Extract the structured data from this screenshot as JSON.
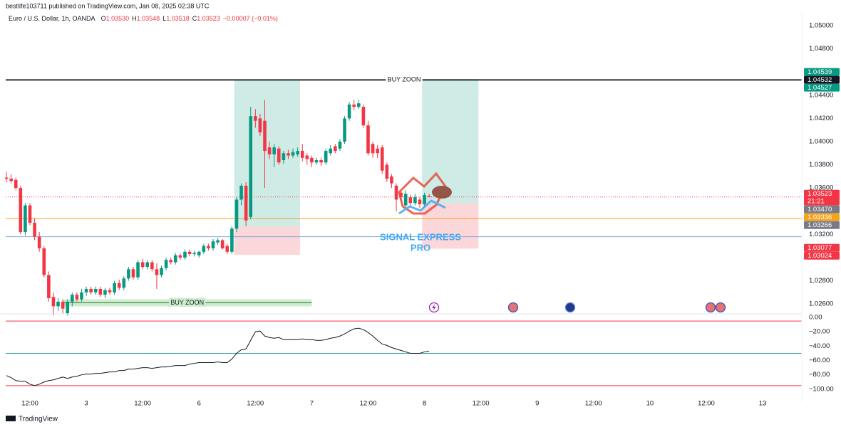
{
  "header": {
    "publisher": "bestlife103711 published on TradingView.com, Jan 08, 2025 02:38 UTC"
  },
  "footer": {
    "brand": "TradingView"
  },
  "chart_data": [
    {
      "type": "candlestick",
      "title": "Euro / U.S. Dollar, 1h, OANDA",
      "ohlc_legend": [
        {
          "label": "O",
          "value": "1.03530"
        },
        {
          "label": "H",
          "value": "1.03548"
        },
        {
          "label": "L",
          "value": "1.03518"
        },
        {
          "label": "C",
          "value": "1.03523"
        }
      ],
      "change": "−0.00007 (−0.01%)",
      "categories": [
        null,
        null,
        null,
        null,
        null,
        "12:00",
        null,
        null,
        null,
        null,
        null,
        null,
        null,
        null,
        null,
        null,
        null,
        "3",
        null,
        null,
        null,
        null,
        null,
        null,
        null,
        null,
        null,
        null,
        null,
        "12:00",
        null,
        null,
        null,
        null,
        null,
        null,
        null,
        null,
        null,
        null,
        null,
        "6",
        null,
        null,
        null,
        null,
        null,
        null,
        null,
        null,
        null,
        null,
        null,
        "12:00",
        null,
        null,
        null,
        null,
        null,
        null,
        null,
        null,
        null,
        null,
        null,
        "7",
        null,
        null,
        null,
        null,
        null,
        null,
        null,
        null,
        null,
        null,
        null,
        "12:00",
        null,
        null,
        null,
        null,
        null,
        null,
        null,
        null,
        null,
        null,
        null,
        "8",
        null,
        null,
        null,
        null,
        null,
        null,
        null,
        null,
        null,
        null,
        null,
        "12:00",
        null,
        null,
        null,
        null,
        null,
        null,
        null,
        null,
        null,
        null,
        null,
        "9",
        null,
        null,
        null,
        null,
        null,
        null,
        null,
        null,
        null,
        null,
        null,
        "12:00",
        null,
        null,
        null,
        null,
        null,
        null,
        null,
        null,
        null,
        null,
        null,
        "10",
        null,
        null,
        null,
        null,
        null,
        null,
        null,
        null,
        null,
        null,
        null,
        "12:00",
        null,
        null,
        null,
        null,
        null,
        null,
        null,
        null,
        null,
        null,
        null,
        "13"
      ],
      "open": [
        1.0369,
        1.0368,
        1.0367,
        1.036,
        1.0322,
        1.0345,
        1.033,
        1.0318,
        1.0308,
        1.0285,
        1.0266,
        1.0258,
        1.0262,
        1.0252,
        1.0262,
        1.0268,
        1.0264,
        1.027,
        1.0273,
        1.027,
        1.0273,
        1.0268,
        1.0272,
        1.027,
        1.0278,
        1.0274,
        1.0282,
        1.029,
        1.0283,
        1.0296,
        1.0292,
        1.0296,
        1.029,
        1.0285,
        1.0291,
        1.0298,
        1.0296,
        1.0302,
        1.03,
        1.0305,
        1.0303,
        1.0302,
        1.0305,
        1.031,
        1.0308,
        1.0313,
        1.0315,
        1.031,
        1.0305,
        1.0325,
        1.035,
        1.0362,
        1.0335,
        1.0422,
        1.042,
        1.0418,
        1.0395,
        1.0389,
        1.0394,
        1.0384,
        1.039,
        1.0388,
        1.0389,
        1.0392,
        1.0388,
        1.0386,
        1.0382,
        1.0384,
        1.0382,
        1.039,
        1.0396,
        1.0394,
        1.04,
        1.042,
        1.0432,
        1.043,
        1.043,
        1.0414,
        1.0398,
        1.0394,
        1.0395,
        1.038,
        1.037,
        1.0362,
        1.0356,
        1.0345,
        1.0352,
        1.0347,
        1.035,
        1.0346,
        1.0353,
        null,
        null,
        null,
        null,
        null,
        null,
        null,
        null,
        null,
        null,
        null,
        null,
        null,
        null,
        null,
        null,
        null,
        null,
        null,
        null,
        null,
        null,
        null,
        null,
        null,
        null,
        null,
        null,
        null,
        null,
        null,
        null,
        null,
        null,
        null,
        null,
        null,
        null,
        null,
        null,
        null,
        null,
        null,
        null,
        null,
        null,
        null,
        null,
        null,
        null,
        null,
        null,
        null,
        null,
        null,
        null,
        null,
        null,
        null,
        null,
        null,
        null,
        null,
        null,
        null,
        null,
        null,
        null,
        null,
        null,
        null
      ],
      "high": [
        1.0374,
        1.0372,
        1.0369,
        1.0362,
        1.0347,
        1.0347,
        1.0334,
        1.0322,
        1.031,
        1.0288,
        1.027,
        1.0265,
        1.0264,
        1.0264,
        1.027,
        1.027,
        1.0273,
        1.0275,
        1.0275,
        1.0275,
        1.0275,
        1.0274,
        1.0274,
        1.028,
        1.0281,
        1.0284,
        1.0292,
        1.0292,
        1.0298,
        1.0299,
        1.0298,
        1.0298,
        1.0295,
        1.0293,
        1.03,
        1.03,
        1.0304,
        1.0304,
        1.0307,
        1.0307,
        1.0306,
        1.0306,
        1.0312,
        1.0312,
        1.0316,
        1.0317,
        1.0316,
        1.0312,
        1.0327,
        1.0352,
        1.0364,
        1.0365,
        1.043,
        1.0428,
        1.0424,
        1.0436,
        1.04,
        1.0398,
        1.0396,
        1.0392,
        1.0393,
        1.0394,
        1.0395,
        1.0398,
        1.039,
        1.0388,
        1.0386,
        1.0386,
        1.0394,
        1.0397,
        1.0398,
        1.0402,
        1.0422,
        1.0434,
        1.0436,
        1.0436,
        1.0432,
        1.0418,
        1.04,
        1.0397,
        1.0397,
        1.0382,
        1.0372,
        1.0364,
        1.0358,
        1.0358,
        1.0354,
        1.0355,
        1.0352,
        1.0356,
        1.03548,
        null,
        null,
        null,
        null,
        null,
        null,
        null,
        null,
        null,
        null,
        null,
        null,
        null,
        null,
        null,
        null,
        null,
        null,
        null,
        null,
        null,
        null,
        null,
        null,
        null,
        null,
        null,
        null,
        null,
        null,
        null,
        null,
        null,
        null,
        null,
        null,
        null,
        null,
        null,
        null,
        null,
        null,
        null,
        null,
        null,
        null,
        null,
        null,
        null,
        null,
        null,
        null,
        null,
        null,
        null,
        null,
        null,
        null,
        null,
        null,
        null,
        null,
        null,
        null,
        null,
        null,
        null,
        null,
        null,
        null,
        null
      ],
      "low": [
        1.0365,
        1.0364,
        1.0358,
        1.032,
        1.0319,
        1.0328,
        1.0315,
        1.0305,
        1.0283,
        1.0262,
        1.025,
        1.0254,
        1.0252,
        1.025,
        1.0258,
        1.0262,
        1.0262,
        1.0267,
        1.0268,
        1.0268,
        1.0266,
        1.0265,
        1.0268,
        1.0268,
        1.0272,
        1.0272,
        1.028,
        1.0281,
        1.0281,
        1.029,
        1.029,
        1.0288,
        1.0273,
        1.0283,
        1.0289,
        1.0294,
        1.0294,
        1.0298,
        1.0298,
        1.0301,
        1.0301,
        1.03,
        1.0303,
        1.0306,
        1.0306,
        1.0311,
        1.0307,
        1.0303,
        1.0303,
        1.0322,
        1.0345,
        1.0327,
        1.0333,
        1.0412,
        1.0405,
        1.036,
        1.0385,
        1.0378,
        1.038,
        1.0381,
        1.0385,
        1.0386,
        1.0387,
        1.0383,
        1.038,
        1.0378,
        1.038,
        1.0379,
        1.038,
        1.0388,
        1.039,
        1.0392,
        1.0398,
        1.0418,
        1.0427,
        1.0428,
        1.0412,
        1.0388,
        1.0386,
        1.0386,
        1.0372,
        1.0365,
        1.036,
        1.034,
        1.0348,
        1.0343,
        1.0344,
        1.0345,
        1.0343,
        1.0344,
        1.03518,
        null,
        null,
        null,
        null,
        null,
        null,
        null,
        null,
        null,
        null,
        null,
        null,
        null,
        null,
        null,
        null,
        null,
        null,
        null,
        null,
        null,
        null,
        null,
        null,
        null,
        null,
        null,
        null,
        null,
        null,
        null,
        null,
        null,
        null,
        null,
        null,
        null,
        null,
        null,
        null,
        null,
        null,
        null,
        null,
        null,
        null,
        null,
        null,
        null,
        null,
        null,
        null,
        null,
        null,
        null,
        null,
        null,
        null,
        null,
        null,
        null,
        null,
        null,
        null,
        null,
        null,
        null,
        null,
        null,
        null,
        null
      ],
      "close": [
        1.0368,
        1.0366,
        1.036,
        1.0322,
        1.0345,
        1.033,
        1.0318,
        1.0308,
        1.0285,
        1.0265,
        1.0258,
        1.0262,
        1.0256,
        1.0262,
        1.0268,
        1.0264,
        1.027,
        1.0273,
        1.027,
        1.0273,
        1.0268,
        1.0272,
        1.027,
        1.0278,
        1.0274,
        1.0282,
        1.029,
        1.0283,
        1.0296,
        1.0292,
        1.0296,
        1.029,
        1.0285,
        1.0291,
        1.0298,
        1.0296,
        1.0302,
        1.03,
        1.0305,
        1.0303,
        1.0304,
        1.0305,
        1.031,
        1.0308,
        1.0314,
        1.0315,
        1.0308,
        1.0305,
        1.0325,
        1.035,
        1.0362,
        1.0332,
        1.0422,
        1.0418,
        1.0408,
        1.0392,
        1.0389,
        1.0395,
        1.0382,
        1.039,
        1.0388,
        1.0391,
        1.0392,
        1.0386,
        1.0385,
        1.0382,
        1.0384,
        1.0382,
        1.0392,
        1.0394,
        1.0392,
        1.04,
        1.042,
        1.0432,
        1.043,
        1.0433,
        1.0414,
        1.039,
        1.039,
        1.039,
        1.0375,
        1.0368,
        1.0364,
        1.035,
        1.0352,
        1.0355,
        1.0347,
        1.0352,
        1.0346,
        1.0354,
        1.03523,
        null,
        null,
        null,
        null,
        null,
        null,
        null,
        null,
        null,
        null,
        null,
        null,
        null,
        null,
        null,
        null,
        null,
        null,
        null,
        null,
        null,
        null,
        null,
        null,
        null,
        null,
        null,
        null,
        null,
        null,
        null,
        null,
        null,
        null,
        null,
        null,
        null,
        null,
        null,
        null,
        null,
        null,
        null,
        null,
        null,
        null,
        null,
        null,
        null,
        null,
        null,
        null,
        null,
        null,
        null,
        null,
        null,
        null,
        null,
        null,
        null,
        null,
        null,
        null,
        null,
        null,
        null,
        null,
        null,
        null,
        null
      ],
      "up_color": "#089981",
      "down_color": "#f23645",
      "ylim": [
        1.02515,
        1.05129
      ],
      "yticks": [
        {
          "value": 1.05,
          "label": "1.05000"
        },
        {
          "value": 1.048,
          "label": "1.04800"
        },
        {
          "value": 1.044,
          "label": "1.04400"
        },
        {
          "value": 1.042,
          "label": "1.04200"
        },
        {
          "value": 1.04,
          "label": "1.04000"
        },
        {
          "value": 1.038,
          "label": "1.03800"
        },
        {
          "value": 1.036,
          "label": "1.03600"
        },
        {
          "value": 1.032,
          "label": "1.03200"
        },
        {
          "value": 1.028,
          "label": "1.02800"
        },
        {
          "value": 1.026,
          "label": "1.02600"
        }
      ],
      "grid": false,
      "horizontal_lines": [
        {
          "value": 1.04532,
          "color": "#000000",
          "style": "solid",
          "label": "BUY ZOON"
        },
        {
          "value": 1.03523,
          "color": "#f23645",
          "style": "dotted"
        },
        {
          "value": 1.03336,
          "color": "#f7a21b",
          "style": "solid"
        },
        {
          "value": 1.0318,
          "color": "#7fa7e0",
          "style": "solid"
        }
      ],
      "positions": [
        {
          "from": 49,
          "to": 63,
          "target": 1.04527,
          "entry": 1.03266,
          "stop": 1.03024
        },
        {
          "from": 89,
          "to": 101,
          "target": 1.04539,
          "entry": 1.0347,
          "stop": 1.03077
        }
      ],
      "zones": [
        {
          "from": 12,
          "to": 65,
          "top": 1.0264,
          "bottom": 1.0258,
          "label": "BUY ZOON",
          "color": "#cdeccd"
        }
      ],
      "price_tags": [
        {
          "value": 1.04539,
          "label": "1.04539",
          "color": "#089981"
        },
        {
          "value": 1.04532,
          "label": "1.04532",
          "color": "#131722"
        },
        {
          "value": 1.04527,
          "label": "1.04527",
          "color": "#089981"
        },
        {
          "value": 1.03523,
          "label": "1.03523",
          "color": "#f23645",
          "sublabel": "21:21"
        },
        {
          "value": 1.0347,
          "label": "1.03470",
          "color": "#787b86"
        },
        {
          "value": 1.03336,
          "label": "1.03336",
          "color": "#f7a21b"
        },
        {
          "value": 1.03266,
          "label": "1.03266",
          "color": "#787b86"
        },
        {
          "value": 1.03077,
          "label": "1.03077",
          "color": "#f23645"
        },
        {
          "value": 1.03024,
          "label": "1.03024",
          "color": "#f23645"
        }
      ],
      "watermark": [
        "SIGNAL EXPRESS",
        "PRO"
      ]
    },
    {
      "type": "line",
      "values": [
        -81,
        -84,
        -88,
        -89,
        -89,
        -93,
        -95,
        -93,
        -90,
        -88,
        -87,
        -85,
        -83,
        -85,
        -83,
        -82,
        -80,
        -79,
        -79,
        -78,
        -78,
        -77,
        -76,
        -76,
        -74,
        -74,
        -72,
        -72,
        -71,
        -70,
        -70,
        -71,
        -70,
        -69,
        -69,
        -68,
        -67,
        -67,
        -67,
        -65,
        -64,
        -63,
        -63,
        -63,
        -63,
        -62,
        -63,
        -63,
        -58,
        -50,
        -45,
        -44,
        -32,
        -20,
        -19,
        -26,
        -28,
        -29,
        -28,
        -31,
        -31,
        -31,
        -31,
        -30,
        -31,
        -31,
        -32,
        -32,
        -31,
        -29,
        -28,
        -26,
        -23,
        -19,
        -16,
        -15,
        -17,
        -21,
        -26,
        -32,
        -37,
        -39,
        -42,
        -44,
        -46,
        -48,
        -50,
        -50,
        -50,
        -48,
        -47,
        null,
        null,
        null,
        null,
        null,
        null,
        null,
        null,
        null,
        null,
        null,
        null,
        null,
        null,
        null,
        null,
        null,
        null,
        null,
        null,
        null,
        null,
        null,
        null,
        null,
        null,
        null,
        null,
        null,
        null,
        null,
        null,
        null,
        null,
        null,
        null,
        null,
        null,
        null,
        null,
        null,
        null,
        null,
        null,
        null,
        null,
        null,
        null,
        null,
        null,
        null,
        null,
        null,
        null,
        null,
        null,
        null,
        null,
        null,
        null,
        null,
        null,
        null,
        null,
        null,
        null,
        null,
        null,
        null,
        null,
        null
      ],
      "color": "#131722",
      "ylim": [
        -118,
        5
      ],
      "yticks": [
        {
          "value": 0,
          "label": "0.00"
        },
        {
          "value": -20,
          "label": "−20.00"
        },
        {
          "value": -40,
          "label": "−40.00"
        },
        {
          "value": -60,
          "label": "−60.00"
        },
        {
          "value": -80,
          "label": "−80.00"
        },
        {
          "value": -100,
          "label": "−100.00"
        }
      ],
      "levels": [
        {
          "value": -5,
          "color": "#f23645"
        },
        {
          "value": -50,
          "color": "#26a69a"
        },
        {
          "value": -95,
          "color": "#f23645"
        }
      ]
    }
  ]
}
